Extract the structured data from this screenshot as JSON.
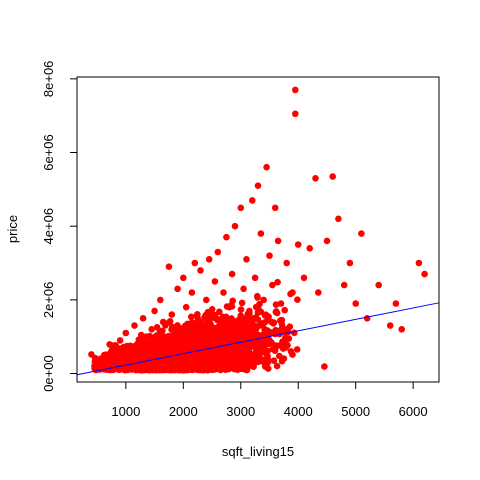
{
  "chart_data": {
    "type": "scatter",
    "title": "",
    "xlabel": "sqft_living15",
    "ylabel": "price",
    "xlim": [
      150,
      6450
    ],
    "ylim": [
      -230000,
      8050000
    ],
    "xticks": [
      1000,
      2000,
      3000,
      4000,
      5000,
      6000
    ],
    "xtick_labels": [
      "1000",
      "2000",
      "3000",
      "4000",
      "5000",
      "6000"
    ],
    "yticks": [
      0,
      2000000,
      4000000,
      6000000,
      8000000
    ],
    "ytick_labels": [
      "0e+00",
      "2e+06",
      "4e+06",
      "6e+06",
      "8e+06"
    ],
    "point_color": "#ff0000",
    "line_color": "#0000ff",
    "regression_line": {
      "intercept": -80000,
      "slope": 310
    },
    "grid": false,
    "points": [
      {
        "x": 400,
        "y": 520000
      },
      {
        "x": 460,
        "y": 330000
      },
      {
        "x": 600,
        "y": 260000
      },
      {
        "x": 700,
        "y": 420000
      },
      {
        "x": 800,
        "y": 700000
      },
      {
        "x": 850,
        "y": 300000
      },
      {
        "x": 900,
        "y": 900000
      },
      {
        "x": 950,
        "y": 500000
      },
      {
        "x": 1000,
        "y": 1100000
      },
      {
        "x": 1050,
        "y": 650000
      },
      {
        "x": 1100,
        "y": 300000
      },
      {
        "x": 1150,
        "y": 1300000
      },
      {
        "x": 1200,
        "y": 800000
      },
      {
        "x": 1250,
        "y": 450000
      },
      {
        "x": 1300,
        "y": 1500000
      },
      {
        "x": 1350,
        "y": 1000000
      },
      {
        "x": 1400,
        "y": 600000
      },
      {
        "x": 1450,
        "y": 1200000
      },
      {
        "x": 1500,
        "y": 1700000
      },
      {
        "x": 1550,
        "y": 800000
      },
      {
        "x": 1600,
        "y": 2000000
      },
      {
        "x": 1650,
        "y": 1400000
      },
      {
        "x": 1700,
        "y": 900000
      },
      {
        "x": 1750,
        "y": 2900000
      },
      {
        "x": 1800,
        "y": 1600000
      },
      {
        "x": 1850,
        "y": 1100000
      },
      {
        "x": 1900,
        "y": 2300000
      },
      {
        "x": 1950,
        "y": 700000
      },
      {
        "x": 2000,
        "y": 2600000
      },
      {
        "x": 2050,
        "y": 1800000
      },
      {
        "x": 2100,
        "y": 1200000
      },
      {
        "x": 2150,
        "y": 2200000
      },
      {
        "x": 2200,
        "y": 3000000
      },
      {
        "x": 2250,
        "y": 1500000
      },
      {
        "x": 2300,
        "y": 2800000
      },
      {
        "x": 2350,
        "y": 900000
      },
      {
        "x": 2400,
        "y": 2000000
      },
      {
        "x": 2450,
        "y": 3100000
      },
      {
        "x": 2500,
        "y": 1600000
      },
      {
        "x": 2550,
        "y": 2500000
      },
      {
        "x": 2600,
        "y": 3300000
      },
      {
        "x": 2650,
        "y": 1200000
      },
      {
        "x": 2700,
        "y": 2200000
      },
      {
        "x": 2750,
        "y": 3700000
      },
      {
        "x": 2800,
        "y": 1800000
      },
      {
        "x": 2850,
        "y": 2700000
      },
      {
        "x": 2900,
        "y": 4000000
      },
      {
        "x": 2950,
        "y": 1400000
      },
      {
        "x": 3000,
        "y": 4500000
      },
      {
        "x": 3050,
        "y": 2300000
      },
      {
        "x": 3100,
        "y": 3100000
      },
      {
        "x": 3150,
        "y": 1700000
      },
      {
        "x": 3200,
        "y": 4700000
      },
      {
        "x": 3250,
        "y": 2600000
      },
      {
        "x": 3300,
        "y": 5100000
      },
      {
        "x": 3350,
        "y": 3800000
      },
      {
        "x": 3400,
        "y": 2000000
      },
      {
        "x": 3450,
        "y": 5600000
      },
      {
        "x": 3500,
        "y": 3200000
      },
      {
        "x": 3550,
        "y": 2400000
      },
      {
        "x": 3600,
        "y": 4500000
      },
      {
        "x": 3650,
        "y": 3600000
      },
      {
        "x": 3700,
        "y": 1900000
      },
      {
        "x": 3800,
        "y": 3000000
      },
      {
        "x": 3900,
        "y": 2200000
      },
      {
        "x": 3950,
        "y": 7700000
      },
      {
        "x": 3950,
        "y": 7050000
      },
      {
        "x": 4000,
        "y": 3500000
      },
      {
        "x": 4100,
        "y": 2600000
      },
      {
        "x": 4200,
        "y": 3400000
      },
      {
        "x": 4300,
        "y": 5300000
      },
      {
        "x": 4350,
        "y": 2200000
      },
      {
        "x": 4500,
        "y": 3600000
      },
      {
        "x": 4600,
        "y": 5350000
      },
      {
        "x": 4700,
        "y": 4200000
      },
      {
        "x": 4800,
        "y": 2400000
      },
      {
        "x": 4900,
        "y": 3000000
      },
      {
        "x": 5000,
        "y": 1900000
      },
      {
        "x": 5100,
        "y": 3800000
      },
      {
        "x": 5200,
        "y": 1500000
      },
      {
        "x": 5400,
        "y": 2400000
      },
      {
        "x": 5600,
        "y": 1300000
      },
      {
        "x": 5700,
        "y": 1900000
      },
      {
        "x": 5800,
        "y": 1200000
      },
      {
        "x": 6100,
        "y": 3000000
      },
      {
        "x": 6200,
        "y": 2700000
      }
    ]
  }
}
